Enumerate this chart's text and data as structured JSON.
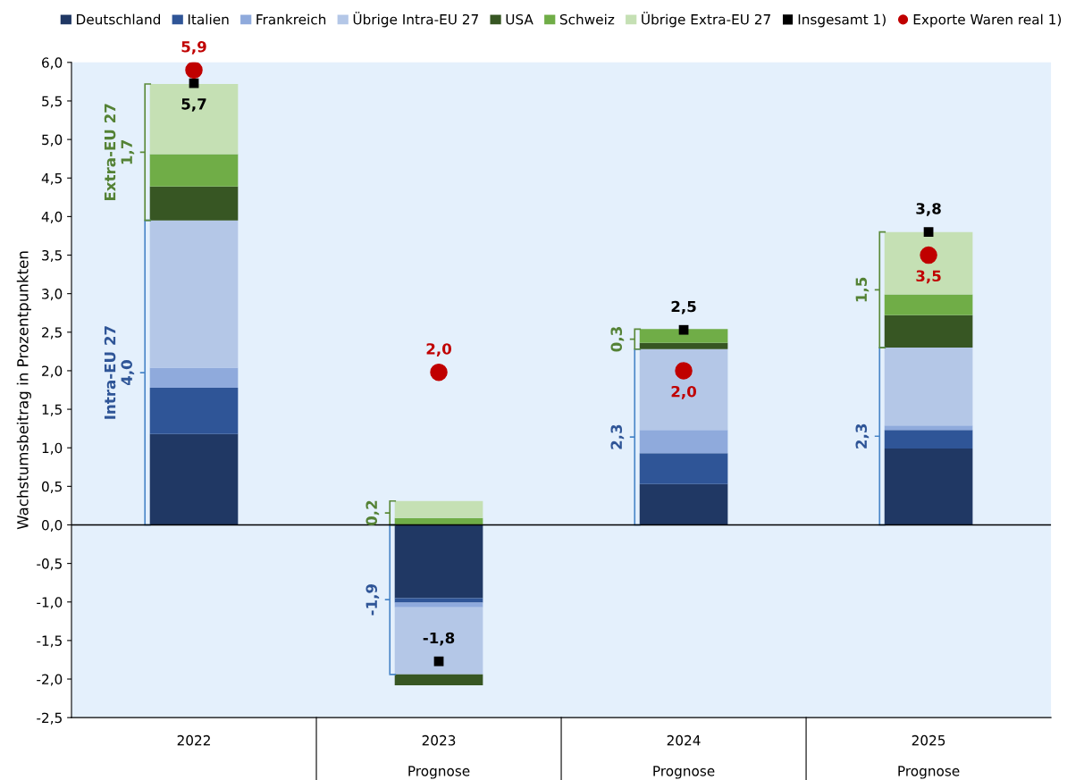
{
  "chart_data": {
    "type": "bar",
    "stacked": true,
    "ylabel": "Wachstumsbeitrag in Prozentpunkten",
    "categories": [
      "2022",
      "2023\n\nPrognose",
      "2024\n\nPrognose",
      "2025\n\nPrognose"
    ],
    "series": [
      {
        "name": "Deutschland",
        "color": "#203864",
        "values": [
          1.18,
          -0.95,
          0.53,
          0.99
        ]
      },
      {
        "name": "Italien",
        "color": "#2f5597",
        "values": [
          0.6,
          -0.06,
          0.4,
          0.24
        ]
      },
      {
        "name": "Frankreich",
        "color": "#8faadc",
        "values": [
          0.26,
          -0.06,
          0.3,
          0.06
        ]
      },
      {
        "name": "Übrige Intra-EU 27",
        "color": "#b4c7e7",
        "values": [
          1.91,
          -0.87,
          1.05,
          1.01
        ]
      },
      {
        "name": "USA",
        "color": "#375623",
        "values": [
          0.44,
          -0.14,
          0.08,
          0.42
        ]
      },
      {
        "name": "Schweiz",
        "color": "#70ad47",
        "values": [
          0.42,
          0.09,
          0.18,
          0.27
        ]
      },
      {
        "name": "Übrige Extra-EU 27",
        "color": "#c5e0b4",
        "values": [
          0.91,
          0.22,
          null,
          0.81
        ]
      },
      {
        "name": "Insgesamt 1)",
        "type": "scatter",
        "marker": "square",
        "color": "#000000",
        "values": [
          5.73,
          -1.77,
          2.53,
          3.8
        ],
        "value_labels": [
          "5,7",
          "-1,8",
          "2,5",
          "3,8"
        ]
      },
      {
        "name": "Exporte Waren real 1)",
        "type": "scatter",
        "marker": "circle",
        "color": "#c00000",
        "values": [
          5.9,
          1.98,
          2.0,
          3.5
        ],
        "value_labels": [
          "5,9",
          "2,0",
          "2,0",
          "3,5"
        ]
      }
    ],
    "annotations": [
      "Intra-EU 27\n4,0",
      "Extra-EU 27\n1,7",
      "-1,9",
      "0,2",
      "2,3",
      "0,3",
      "2,3",
      "1,5"
    ],
    "ref_lines": [
      {
        "axis": "y",
        "value": 0,
        "color": "#000000"
      }
    ],
    "ylim": [
      -2.5,
      6.0
    ],
    "yticks": [
      {
        "value": -2.5,
        "label": "-2,5"
      },
      {
        "value": -2.0,
        "label": "-2,0"
      },
      {
        "value": -1.5,
        "label": "-1,5"
      },
      {
        "value": -1.0,
        "label": "-1,0"
      },
      {
        "value": -0.5,
        "label": "-0,5"
      },
      {
        "value": 0.0,
        "label": "0,0"
      },
      {
        "value": 0.5,
        "label": "0,5"
      },
      {
        "value": 1.0,
        "label": "1,0"
      },
      {
        "value": 1.5,
        "label": "1,5"
      },
      {
        "value": 2.0,
        "label": "2,0"
      },
      {
        "value": 2.5,
        "label": "2,5"
      },
      {
        "value": 3.0,
        "label": "3,0"
      },
      {
        "value": 3.5,
        "label": "3,5"
      },
      {
        "value": 4.0,
        "label": "4,0"
      },
      {
        "value": 4.5,
        "label": "4,5"
      },
      {
        "value": 5.0,
        "label": "5,0"
      },
      {
        "value": 5.5,
        "label": "5,5"
      },
      {
        "value": 6.0,
        "label": "6,0"
      }
    ],
    "grid": false,
    "legend": "top"
  }
}
